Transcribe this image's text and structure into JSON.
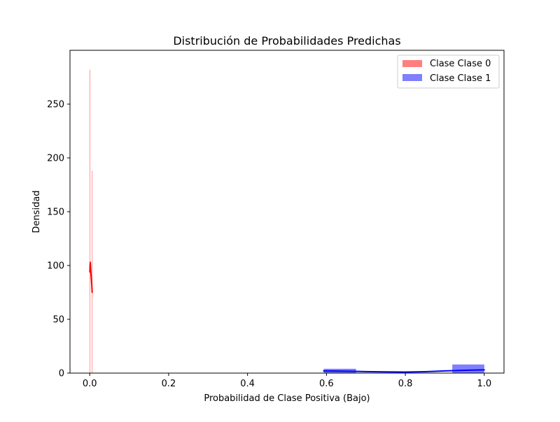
{
  "chart_data": {
    "type": "histogram",
    "title": "Distribución de Probabilidades Predichas",
    "xlabel": "Probabilidad de Clase Positiva (Bajo)",
    "ylabel": "Densidad",
    "xlim": [
      -0.05,
      1.05
    ],
    "ylim": [
      0,
      300
    ],
    "xticks": [
      0.0,
      0.2,
      0.4,
      0.6,
      0.8,
      1.0
    ],
    "xtick_labels": [
      "0.0",
      "0.2",
      "0.4",
      "0.6",
      "0.8",
      "1.0"
    ],
    "yticks": [
      0,
      50,
      100,
      150,
      200,
      250
    ],
    "ytick_labels": [
      "0",
      "50",
      "100",
      "150",
      "200",
      "250"
    ],
    "grid": false,
    "legend_position": "top-right",
    "series": [
      {
        "name": "Clase Clase 0",
        "color": "#ff0000",
        "alpha": 0.5,
        "bins": [
          {
            "x0": 0.0,
            "x1": 0.0005,
            "density": 282
          },
          {
            "x0": 0.0005,
            "x1": 0.001,
            "density": 0
          },
          {
            "x0": 0.001,
            "x1": 0.0015,
            "density": 0
          },
          {
            "x0": 0.0015,
            "x1": 0.002,
            "density": 0
          },
          {
            "x0": 0.002,
            "x1": 0.0025,
            "density": 0
          },
          {
            "x0": 0.0025,
            "x1": 0.003,
            "density": 0
          },
          {
            "x0": 0.003,
            "x1": 0.0035,
            "density": 0
          },
          {
            "x0": 0.0035,
            "x1": 0.004,
            "density": 0
          },
          {
            "x0": 0.004,
            "x1": 0.0045,
            "density": 0
          },
          {
            "x0": 0.0045,
            "x1": 0.005,
            "density": 0
          },
          {
            "x0": 0.005,
            "x1": 0.0055,
            "density": 0
          },
          {
            "x0": 0.0055,
            "x1": 0.006,
            "density": 188
          }
        ],
        "kde": [
          [
            0.0003,
            94
          ],
          [
            0.0008,
            100
          ],
          [
            0.0013,
            103
          ],
          [
            0.0018,
            100
          ],
          [
            0.0028,
            94
          ],
          [
            0.004,
            88
          ],
          [
            0.005,
            83
          ],
          [
            0.0058,
            78
          ],
          [
            0.0062,
            75
          ]
        ]
      },
      {
        "name": "Clase Clase 1",
        "color": "#0000ff",
        "alpha": 0.5,
        "bins": [
          {
            "x0": 0.593,
            "x1": 0.675,
            "density": 4
          },
          {
            "x0": 0.675,
            "x1": 0.756,
            "density": 0
          },
          {
            "x0": 0.756,
            "x1": 0.838,
            "density": 0
          },
          {
            "x0": 0.838,
            "x1": 0.919,
            "density": 0
          },
          {
            "x0": 0.919,
            "x1": 1.0,
            "density": 8
          }
        ],
        "kde": [
          [
            0.593,
            2.0
          ],
          [
            0.65,
            1.8
          ],
          [
            0.7,
            1.4
          ],
          [
            0.75,
            1.1
          ],
          [
            0.8,
            1.0
          ],
          [
            0.85,
            1.3
          ],
          [
            0.9,
            2.0
          ],
          [
            0.95,
            2.6
          ],
          [
            1.0,
            3.0
          ]
        ]
      }
    ]
  }
}
